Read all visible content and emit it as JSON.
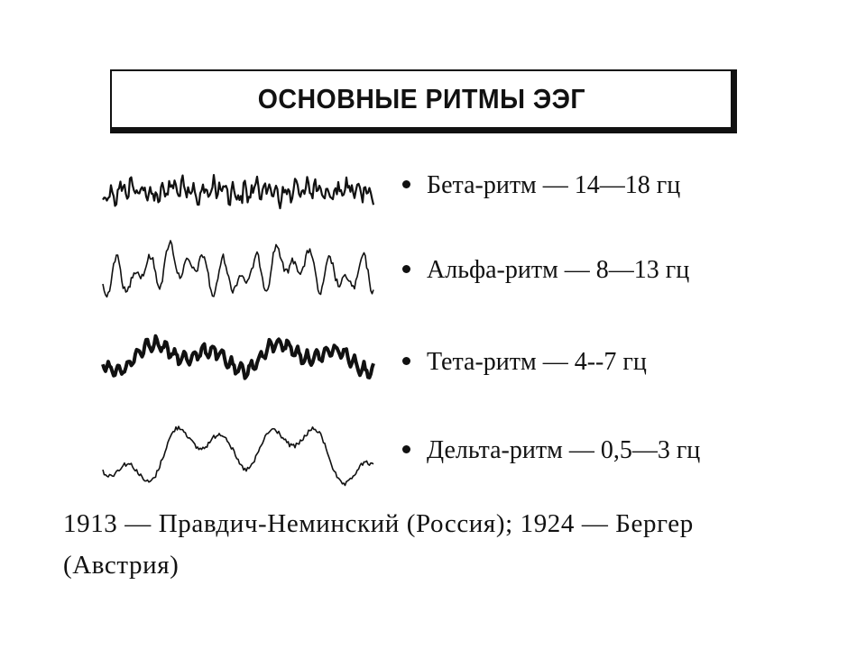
{
  "title": "ОСНОВНЫЕ РИТМЫ ЭЭГ",
  "rhythms": [
    {
      "label": "Бета-ритм — 14—18 гц"
    },
    {
      "label": "Альфа-ритм — 8—13 гц"
    },
    {
      "label": "Тета-ритм — 4--7 гц"
    },
    {
      "label": "Дельта-ритм — 0,5—3 гц"
    }
  ],
  "footnote": "1913 — Правдич-Неминский (Россия); 1924 — Бергер (Австрия)"
}
